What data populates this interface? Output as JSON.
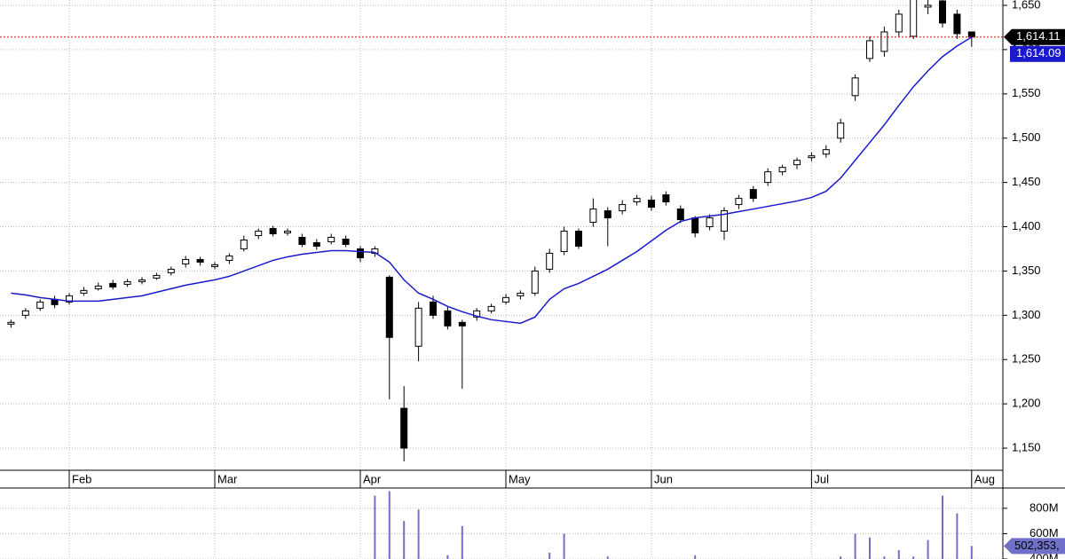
{
  "chart_data": [
    {
      "type": "candlestick",
      "categories": [
        null,
        null,
        null,
        null,
        "Feb",
        null,
        null,
        null,
        null,
        null,
        null,
        null,
        null,
        null,
        "Mar",
        null,
        null,
        null,
        null,
        null,
        null,
        null,
        null,
        null,
        "Apr",
        null,
        null,
        null,
        null,
        null,
        null,
        null,
        null,
        null,
        "May",
        null,
        null,
        null,
        null,
        null,
        null,
        null,
        null,
        null,
        "Jun",
        null,
        null,
        null,
        null,
        null,
        null,
        null,
        null,
        null,
        null,
        "Jul",
        null,
        null,
        null,
        null,
        null,
        null,
        null,
        null,
        null,
        null,
        "Aug"
      ],
      "open": [
        1290,
        1300,
        1308,
        1318,
        1315,
        1325,
        1330,
        1336,
        1335,
        1338,
        1342,
        1348,
        1358,
        1363,
        1355,
        1362,
        1375,
        1390,
        1398,
        1393,
        1388,
        1382,
        1383,
        1386,
        1375,
        1370,
        1343,
        1195,
        1265,
        1315,
        1305,
        1292,
        1298,
        1305,
        1315,
        1322,
        1325,
        1352,
        1372,
        1395,
        1405,
        1418,
        1418,
        1428,
        1430,
        1436,
        1420,
        1410,
        1400,
        1395,
        1425,
        1442,
        1450,
        1462,
        1470,
        1478,
        1482,
        1500,
        1548,
        1590,
        1598,
        1620,
        1615,
        1648,
        1655,
        1640,
        1620
      ],
      "high": [
        1295,
        1308,
        1318,
        1322,
        1325,
        1332,
        1337,
        1340,
        1341,
        1343,
        1348,
        1355,
        1367,
        1366,
        1360,
        1370,
        1390,
        1398,
        1401,
        1398,
        1392,
        1386,
        1392,
        1390,
        1378,
        1378,
        1345,
        1220,
        1315,
        1322,
        1310,
        1295,
        1308,
        1313,
        1324,
        1328,
        1355,
        1375,
        1400,
        1398,
        1432,
        1422,
        1430,
        1436,
        1435,
        1440,
        1424,
        1412,
        1414,
        1422,
        1436,
        1446,
        1466,
        1470,
        1478,
        1484,
        1492,
        1522,
        1572,
        1615,
        1626,
        1645,
        1665,
        1660,
        1660,
        1645,
        1620
      ],
      "low": [
        1286,
        1296,
        1305,
        1308,
        1312,
        1322,
        1328,
        1329,
        1332,
        1335,
        1340,
        1345,
        1354,
        1356,
        1352,
        1358,
        1372,
        1386,
        1389,
        1390,
        1377,
        1374,
        1380,
        1377,
        1360,
        1366,
        1205,
        1135,
        1248,
        1296,
        1284,
        1217,
        1294,
        1302,
        1312,
        1318,
        1322,
        1348,
        1368,
        1375,
        1400,
        1378,
        1414,
        1424,
        1418,
        1424,
        1404,
        1388,
        1396,
        1385,
        1420,
        1428,
        1446,
        1458,
        1465,
        1474,
        1478,
        1495,
        1542,
        1586,
        1592,
        1615,
        1612,
        1640,
        1625,
        1612,
        1603
      ],
      "close": [
        1292,
        1305,
        1315,
        1312,
        1322,
        1328,
        1333,
        1332,
        1338,
        1340,
        1345,
        1352,
        1363,
        1360,
        1357,
        1367,
        1385,
        1395,
        1392,
        1395,
        1380,
        1378,
        1388,
        1380,
        1365,
        1375,
        1275,
        1150,
        1308,
        1300,
        1288,
        1288,
        1305,
        1310,
        1320,
        1325,
        1350,
        1370,
        1395,
        1378,
        1420,
        1410,
        1425,
        1432,
        1422,
        1428,
        1408,
        1393,
        1410,
        1418,
        1432,
        1432,
        1462,
        1467,
        1475,
        1480,
        1487,
        1517,
        1568,
        1610,
        1620,
        1640,
        1660,
        1650,
        1630,
        1618,
        1614.11
      ],
      "last_close_label": "1,614.11",
      "up_color": "#ffffff",
      "down_color": "#000000",
      "wick_color": "#000000",
      "overlay": {
        "color": "#1a1acc",
        "last_label": "1,614.09",
        "values": [
          1325,
          1323,
          1320,
          1318,
          1316,
          1316,
          1316,
          1318,
          1320,
          1322,
          1326,
          1330,
          1334,
          1337,
          1340,
          1344,
          1350,
          1356,
          1362,
          1366,
          1369,
          1371,
          1373,
          1373,
          1372,
          1371,
          1360,
          1340,
          1325,
          1318,
          1310,
          1304,
          1299,
          1295,
          1293,
          1291,
          1298,
          1318,
          1330,
          1336,
          1344,
          1352,
          1362,
          1372,
          1384,
          1396,
          1406,
          1410,
          1412,
          1414,
          1417,
          1420,
          1423,
          1426,
          1429,
          1433,
          1440,
          1455,
          1475,
          1495,
          1515,
          1537,
          1558,
          1576,
          1592,
          1604,
          1614.09
        ]
      },
      "ylim": [
        1125,
        1656
      ],
      "yticks": [
        {
          "value": 1150,
          "label": "1,150"
        },
        {
          "value": 1200,
          "label": "1,200"
        },
        {
          "value": 1250,
          "label": "1,250"
        },
        {
          "value": 1300,
          "label": "1,300"
        },
        {
          "value": 1350,
          "label": "1,350"
        },
        {
          "value": 1400,
          "label": "1,400"
        },
        {
          "value": 1450,
          "label": "1,450"
        },
        {
          "value": 1500,
          "label": "1,500"
        },
        {
          "value": 1550,
          "label": "1,550"
        },
        {
          "value": 1600,
          "label": "1,600"
        },
        {
          "value": 1650,
          "label": "1,650"
        }
      ],
      "grid": true
    },
    {
      "type": "bar",
      "color": "#7070c8",
      "values": [
        380,
        380,
        390,
        380,
        380,
        390,
        380,
        380,
        380,
        380,
        390,
        380,
        380,
        380,
        390,
        380,
        380,
        380,
        390,
        380,
        380,
        380,
        390,
        380,
        380,
        900,
        935,
        700,
        790,
        380,
        430,
        660,
        380,
        380,
        380,
        380,
        380,
        450,
        600,
        380,
        380,
        420,
        380,
        380,
        380,
        380,
        380,
        430,
        380,
        380,
        380,
        380,
        380,
        380,
        380,
        380,
        380,
        420,
        600,
        570,
        420,
        470,
        420,
        550,
        900,
        760,
        502.353
      ],
      "last_label": "502,353,",
      "ylim": [
        400,
        953
      ],
      "yticks": [
        {
          "value": 400,
          "label": "400M"
        },
        {
          "value": 600,
          "label": "600M"
        },
        {
          "value": 800,
          "label": "800M"
        }
      ],
      "grid": true
    }
  ]
}
